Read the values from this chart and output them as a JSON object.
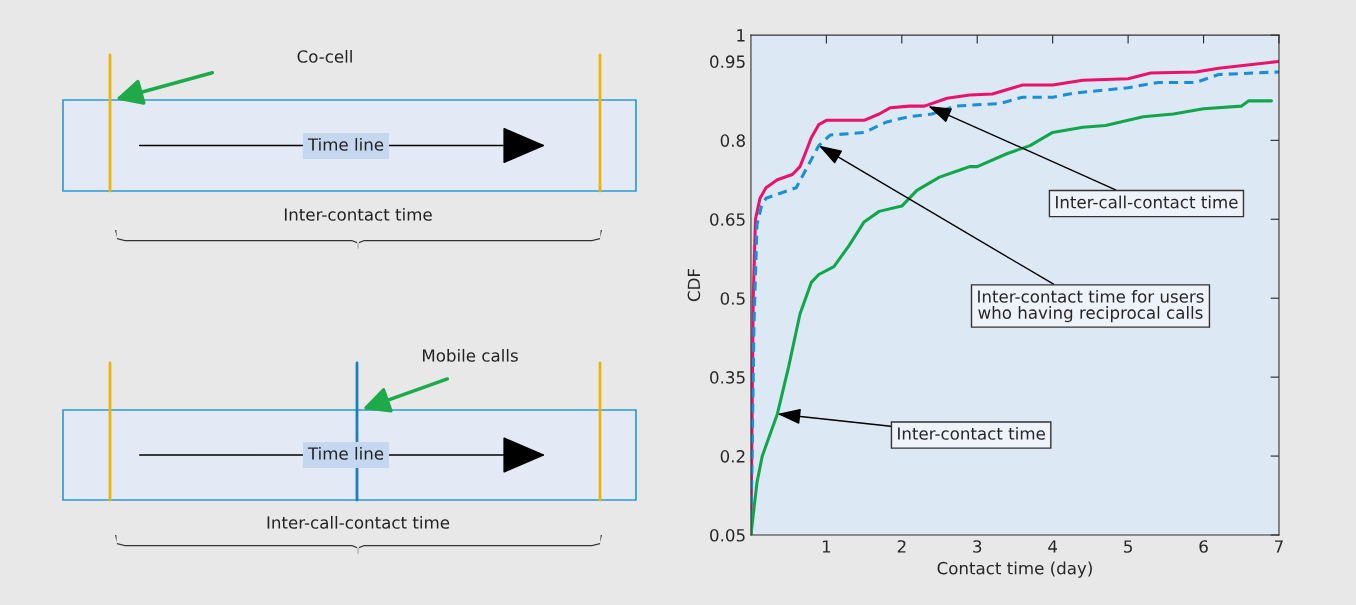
{
  "chart_data": [
    {
      "type": "other",
      "annotations": [
        "Co-cell",
        "Time line",
        "Inter-contact time",
        "Mobile calls",
        "Time line",
        "Inter-call-contact time"
      ]
    },
    {
      "type": "line",
      "xlabel": "Contact time (day)",
      "ylabel": "CDF",
      "xlim": [
        0,
        7
      ],
      "ylim": [
        0.05,
        1
      ],
      "xticks": [
        1,
        2,
        3,
        4,
        5,
        6,
        7
      ],
      "yticks": [
        0.05,
        0.2,
        0.35,
        0.5,
        0.65,
        0.8,
        0.95,
        1
      ],
      "tick_labels": "xy",
      "series": [
        {
          "color": "#e8136b",
          "line_style": "solid",
          "x": [
            0,
            0.03,
            0.06,
            0.12,
            0.2,
            0.35,
            0.55,
            0.65,
            0.72,
            0.8,
            0.9,
            1.0,
            1.1,
            1.5,
            1.7,
            1.85,
            2.1,
            2.3,
            2.6,
            2.9,
            3.2,
            3.6,
            4.0,
            4.4,
            5.0,
            5.3,
            5.9,
            6.2,
            7.0
          ],
          "values": [
            0.05,
            0.5,
            0.65,
            0.69,
            0.71,
            0.725,
            0.735,
            0.75,
            0.775,
            0.805,
            0.83,
            0.838,
            0.838,
            0.838,
            0.85,
            0.862,
            0.865,
            0.865,
            0.88,
            0.886,
            0.888,
            0.905,
            0.905,
            0.914,
            0.917,
            0.928,
            0.93,
            0.937,
            0.95
          ]
        },
        {
          "color": "#1a8fd6",
          "line_style": "dashed",
          "x": [
            0,
            0.04,
            0.08,
            0.14,
            0.2,
            0.4,
            0.6,
            0.75,
            0.9,
            1.05,
            1.5,
            1.8,
            2.1,
            2.4,
            2.7,
            3.3,
            3.6,
            4.0,
            4.3,
            5.0,
            5.4,
            5.9,
            6.2,
            7.0
          ],
          "values": [
            0.05,
            0.45,
            0.64,
            0.675,
            0.69,
            0.7,
            0.71,
            0.75,
            0.79,
            0.81,
            0.815,
            0.835,
            0.845,
            0.85,
            0.865,
            0.87,
            0.882,
            0.882,
            0.89,
            0.9,
            0.91,
            0.91,
            0.925,
            0.93
          ]
        },
        {
          "color": "#12a64a",
          "line_style": "solid",
          "x": [
            0,
            0.08,
            0.15,
            0.35,
            0.5,
            0.65,
            0.8,
            0.9,
            1.1,
            1.3,
            1.5,
            1.7,
            2.0,
            2.2,
            2.5,
            2.8,
            2.9,
            3.0,
            3.4,
            3.7,
            4.0,
            4.4,
            4.7,
            5.2,
            5.6,
            6.0,
            6.5,
            6.6,
            6.9
          ],
          "values": [
            0.05,
            0.15,
            0.2,
            0.28,
            0.37,
            0.47,
            0.53,
            0.545,
            0.56,
            0.6,
            0.645,
            0.665,
            0.675,
            0.705,
            0.73,
            0.745,
            0.75,
            0.75,
            0.775,
            0.79,
            0.815,
            0.825,
            0.828,
            0.845,
            0.85,
            0.86,
            0.865,
            0.875,
            0.875
          ]
        }
      ],
      "annotations": [
        {
          "text": "Inter-call-contact time",
          "x": 2.35,
          "y": 0.865
        },
        {
          "text": "Inter-contact time for users\nwho having reciprocal calls",
          "x": 0.9,
          "y": 0.79
        },
        {
          "text": "Inter-contact time",
          "x": 0.35,
          "y": 0.28
        }
      ]
    }
  ]
}
